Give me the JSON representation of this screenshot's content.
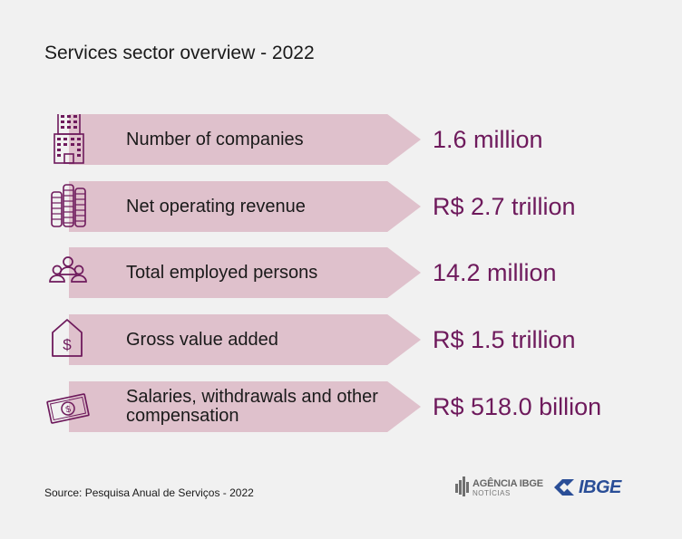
{
  "title": "Services sector overview - 2022",
  "rows": [
    {
      "label": "Number of companies",
      "value": "1.6 million",
      "icon": "office-building-icon"
    },
    {
      "label": "Net operating revenue",
      "value": "R$ 2.7 trillion",
      "icon": "coin-stacks-icon"
    },
    {
      "label": "Total employed persons",
      "value": "14.2 million",
      "icon": "people-group-icon"
    },
    {
      "label": "Gross value added",
      "value": "R$ 1.5 trillion",
      "icon": "price-tag-icon"
    },
    {
      "label": "Salaries, withdrawals and other compensation",
      "value": "R$ 518.0 billion",
      "icon": "banknote-icon"
    }
  ],
  "source": "Source: Pesquisa Anual de Serviços - 2022",
  "logos": {
    "agencia_title": "AGÊNCIA IBGE",
    "agencia_sub": "NOTÍCIAS",
    "ibge": "IBGE"
  },
  "colors": {
    "background": "#f1f1f1",
    "arrow": "#dfc1cc",
    "accent": "#6e1a5c",
    "ibge_blue": "#2a4e97"
  }
}
